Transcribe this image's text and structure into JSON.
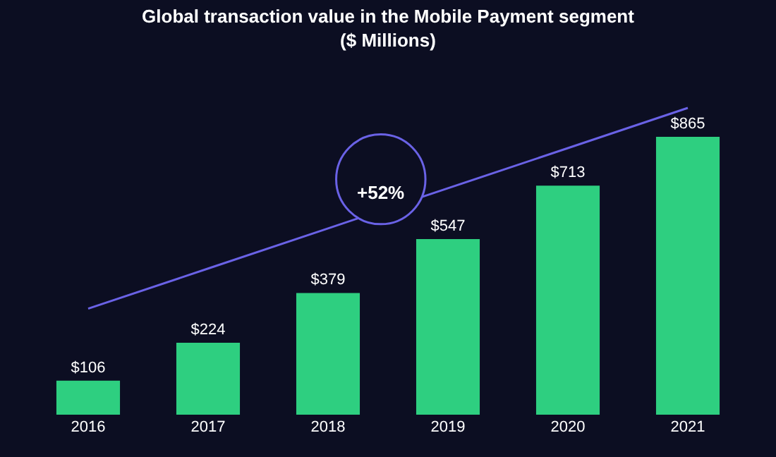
{
  "chart_data": {
    "type": "bar",
    "title": "Global transaction value in the Mobile Payment segment",
    "subtitle": "($ Millions)",
    "categories": [
      "2016",
      "2017",
      "2018",
      "2019",
      "2020",
      "2021"
    ],
    "series": [
      {
        "color": "#2ecf80",
        "values": [
          106,
          224,
          379,
          547,
          713,
          865
        ],
        "value_labels": [
          "$106",
          "$224",
          "$379",
          "$547",
          "$713",
          "$865"
        ]
      },
      {
        "type": "line",
        "color": "#6a62e6",
        "values": [
          330,
          455,
          580,
          705,
          830,
          955
        ]
      }
    ],
    "annotations": [
      "+52%"
    ],
    "grid": false,
    "legend": false,
    "tick_labels": "x"
  }
}
